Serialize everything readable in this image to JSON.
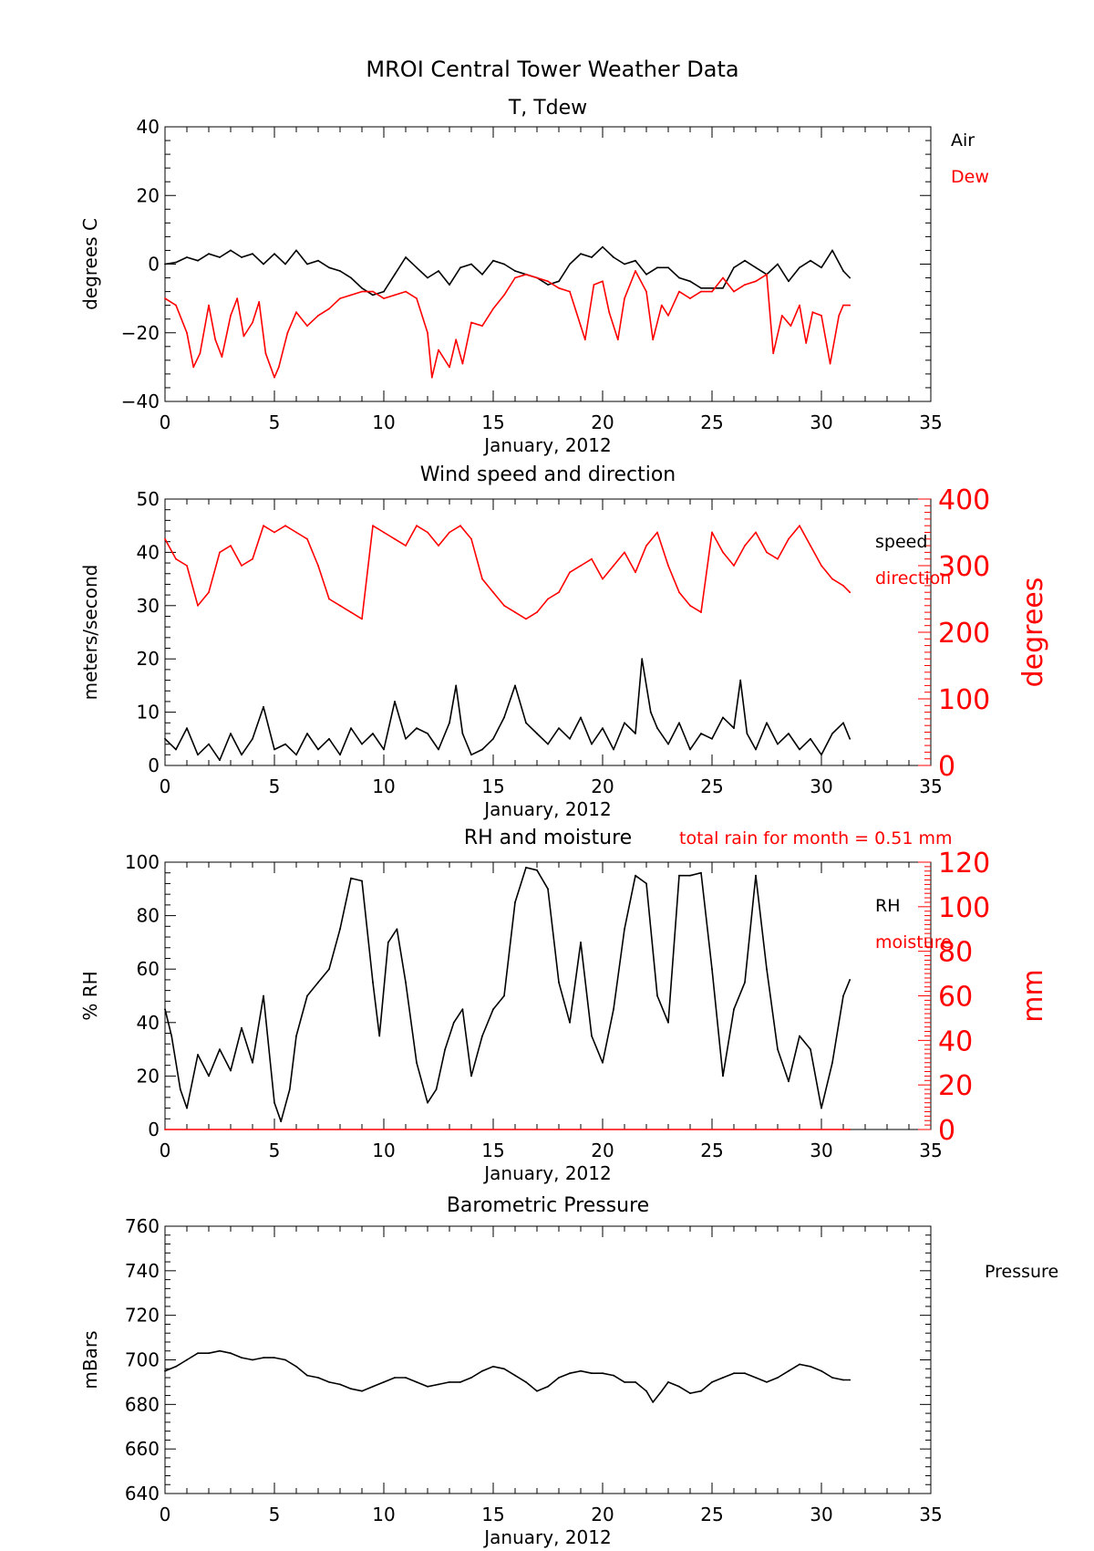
{
  "figure": {
    "title": "MROI Central Tower Weather Data"
  },
  "chart_data": [
    {
      "type": "line",
      "title": "T, Tdew",
      "xlabel": "January, 2012",
      "ylabel": "degrees C",
      "xlim": [
        0,
        35
      ],
      "ylim": [
        -40,
        40
      ],
      "xticks": [
        "0",
        "5",
        "10",
        "15",
        "20",
        "25",
        "30",
        "35"
      ],
      "yticks": [
        "−40",
        "−20",
        "0",
        "20",
        "40"
      ],
      "series": [
        {
          "name": "Air",
          "color": "#000000",
          "x": [
            0,
            0.5,
            1,
            1.5,
            2,
            2.5,
            3,
            3.5,
            4,
            4.5,
            5,
            5.5,
            6,
            6.5,
            7,
            7.5,
            8,
            8.5,
            9,
            9.5,
            10,
            10.5,
            11,
            11.5,
            12,
            12.5,
            13,
            13.5,
            14,
            14.5,
            15,
            15.5,
            16,
            16.5,
            17,
            17.5,
            18,
            18.5,
            19,
            19.5,
            20,
            20.5,
            21,
            21.5,
            22,
            22.5,
            23,
            23.5,
            24,
            24.5,
            25,
            25.5,
            26,
            26.5,
            27,
            27.5,
            28,
            28.5,
            29,
            29.5,
            30,
            30.5,
            31,
            31.3
          ],
          "y": [
            0,
            0.5,
            2,
            1,
            3,
            2,
            4,
            2,
            3,
            0,
            3,
            0,
            4,
            0,
            1,
            -1,
            -2,
            -4,
            -7,
            -9,
            -8,
            -3,
            2,
            -1,
            -4,
            -2,
            -6,
            -1,
            0,
            -3,
            1,
            0,
            -2,
            -3,
            -4,
            -6,
            -5,
            0,
            3,
            2,
            5,
            2,
            0,
            1,
            -3,
            -1,
            -1,
            -4,
            -5,
            -7,
            -7,
            -7,
            -1,
            1,
            -1,
            -3,
            0,
            -5,
            -1,
            1,
            -1,
            4,
            -2,
            -4
          ]
        },
        {
          "name": "Dew",
          "color": "#ff0000",
          "x": [
            0,
            0.5,
            1,
            1.3,
            1.6,
            2,
            2.3,
            2.6,
            3,
            3.3,
            3.6,
            4,
            4.3,
            4.6,
            5,
            5.2,
            5.6,
            6,
            6.5,
            7,
            7.5,
            8,
            8.5,
            9,
            9.5,
            10,
            10.5,
            11,
            11.5,
            12,
            12.2,
            12.5,
            13,
            13.3,
            13.6,
            14,
            14.5,
            15,
            15.5,
            16,
            16.5,
            17,
            17.5,
            18,
            18.5,
            19,
            19.2,
            19.6,
            20,
            20.3,
            20.7,
            21,
            21.5,
            22,
            22.3,
            22.7,
            23,
            23.5,
            24,
            24.5,
            25,
            25.5,
            26,
            26.5,
            27,
            27.5,
            27.8,
            28.2,
            28.6,
            29,
            29.3,
            29.6,
            30,
            30.4,
            30.8,
            31,
            31.3
          ],
          "y": [
            -10,
            -12,
            -20,
            -30,
            -26,
            -12,
            -22,
            -27,
            -15,
            -10,
            -21,
            -17,
            -11,
            -26,
            -33,
            -30,
            -20,
            -14,
            -18,
            -15,
            -13,
            -10,
            -9,
            -8,
            -8,
            -10,
            -9,
            -8,
            -10,
            -20,
            -33,
            -25,
            -30,
            -22,
            -29,
            -17,
            -18,
            -13,
            -9,
            -4,
            -3,
            -4,
            -5,
            -7,
            -8,
            -18,
            -22,
            -6,
            -5,
            -14,
            -22,
            -10,
            -2,
            -8,
            -22,
            -12,
            -15,
            -8,
            -10,
            -8,
            -8,
            -4,
            -8,
            -6,
            -5,
            -3,
            -26,
            -15,
            -18,
            -12,
            -23,
            -14,
            -15,
            -29,
            -15,
            -12,
            -12
          ]
        }
      ]
    },
    {
      "type": "line",
      "title": "Wind speed and direction",
      "xlabel": "January, 2012",
      "ylabel": "meters/second",
      "y2label": "degrees",
      "xlim": [
        0,
        35
      ],
      "ylim": [
        0,
        50
      ],
      "y2lim": [
        0,
        400
      ],
      "xticks": [
        "0",
        "5",
        "10",
        "15",
        "20",
        "25",
        "30",
        "35"
      ],
      "yticks": [
        "0",
        "10",
        "20",
        "30",
        "40",
        "50"
      ],
      "y2ticks": [
        "0",
        "100",
        "200",
        "300",
        "400"
      ],
      "series": [
        {
          "name": "speed",
          "color": "#000000",
          "axis": "left",
          "x": [
            0,
            0.5,
            1,
            1.5,
            2,
            2.5,
            3,
            3.5,
            4,
            4.5,
            5,
            5.5,
            6,
            6.5,
            7,
            7.5,
            8,
            8.5,
            9,
            9.5,
            10,
            10.5,
            11,
            11.5,
            12,
            12.5,
            13,
            13.3,
            13.6,
            14,
            14.5,
            15,
            15.5,
            16,
            16.5,
            17,
            17.5,
            18,
            18.5,
            19,
            19.5,
            20,
            20.5,
            21,
            21.5,
            21.8,
            22.2,
            22.5,
            23,
            23.5,
            24,
            24.5,
            25,
            25.5,
            26,
            26.3,
            26.6,
            27,
            27.5,
            28,
            28.5,
            29,
            29.5,
            30,
            30.5,
            31,
            31.3
          ],
          "y": [
            5,
            3,
            7,
            2,
            4,
            1,
            6,
            2,
            5,
            11,
            3,
            4,
            2,
            6,
            3,
            5,
            2,
            7,
            4,
            6,
            3,
            12,
            5,
            7,
            6,
            3,
            8,
            15,
            6,
            2,
            3,
            5,
            9,
            15,
            8,
            6,
            4,
            7,
            5,
            9,
            4,
            7,
            3,
            8,
            6,
            20,
            10,
            7,
            4,
            8,
            3,
            6,
            5,
            9,
            7,
            16,
            6,
            3,
            8,
            4,
            6,
            3,
            5,
            2,
            6,
            8,
            5
          ]
        },
        {
          "name": "direction",
          "color": "#ff0000",
          "axis": "right",
          "x": [
            0,
            0.5,
            1,
            1.5,
            2,
            2.5,
            3,
            3.5,
            4,
            4.5,
            5,
            5.5,
            6,
            6.5,
            7,
            7.5,
            8,
            8.5,
            9,
            9.5,
            10,
            10.5,
            11,
            11.5,
            12,
            12.5,
            13,
            13.5,
            14,
            14.5,
            15,
            15.5,
            16,
            16.5,
            17,
            17.5,
            18,
            18.5,
            19,
            19.5,
            20,
            20.5,
            21,
            21.5,
            22,
            22.5,
            23,
            23.5,
            24,
            24.5,
            25,
            25.5,
            26,
            26.5,
            27,
            27.5,
            28,
            28.5,
            29,
            29.5,
            30,
            30.5,
            31,
            31.3
          ],
          "y": [
            340,
            310,
            300,
            240,
            260,
            320,
            330,
            300,
            310,
            360,
            350,
            360,
            350,
            340,
            300,
            250,
            240,
            230,
            220,
            360,
            350,
            340,
            330,
            360,
            350,
            330,
            350,
            360,
            340,
            280,
            260,
            240,
            230,
            220,
            230,
            250,
            260,
            290,
            300,
            310,
            280,
            300,
            320,
            290,
            330,
            350,
            300,
            260,
            240,
            230,
            350,
            320,
            300,
            330,
            350,
            320,
            310,
            340,
            360,
            330,
            300,
            280,
            270,
            260
          ]
        }
      ]
    },
    {
      "type": "line",
      "title": "RH and moisture",
      "annotation": "total rain for month =      0.51 mm",
      "xlabel": "January, 2012",
      "ylabel": "% RH",
      "y2label": "mm",
      "xlim": [
        0,
        35
      ],
      "ylim": [
        0,
        100
      ],
      "y2lim": [
        0,
        125
      ],
      "xticks": [
        "0",
        "5",
        "10",
        "15",
        "20",
        "25",
        "30",
        "35"
      ],
      "yticks": [
        "0",
        "20",
        "40",
        "60",
        "80",
        "100"
      ],
      "y2ticks": [
        "0",
        "20",
        "40",
        "60",
        "80",
        "100",
        "120"
      ],
      "series": [
        {
          "name": "RH",
          "color": "#000000",
          "axis": "left",
          "x": [
            0,
            0.3,
            0.7,
            1,
            1.5,
            2,
            2.5,
            3,
            3.5,
            4,
            4.5,
            5,
            5.3,
            5.7,
            6,
            6.5,
            7,
            7.5,
            8,
            8.5,
            9,
            9.5,
            9.8,
            10.2,
            10.6,
            11,
            11.5,
            12,
            12.4,
            12.8,
            13.2,
            13.6,
            14,
            14.5,
            15,
            15.5,
            16,
            16.5,
            17,
            17.5,
            18,
            18.5,
            19,
            19.5,
            20,
            20.5,
            21,
            21.5,
            22,
            22.5,
            23,
            23.5,
            24,
            24.5,
            25,
            25.5,
            26,
            26.5,
            27,
            27.5,
            28,
            28.5,
            29,
            29.5,
            30,
            30.5,
            31,
            31.3
          ],
          "y": [
            45,
            35,
            15,
            8,
            28,
            20,
            30,
            22,
            38,
            25,
            50,
            10,
            3,
            15,
            35,
            50,
            55,
            60,
            75,
            94,
            93,
            55,
            35,
            70,
            75,
            55,
            25,
            10,
            15,
            30,
            40,
            45,
            20,
            35,
            45,
            50,
            85,
            98,
            97,
            90,
            55,
            40,
            70,
            35,
            25,
            45,
            75,
            95,
            92,
            50,
            40,
            95,
            95,
            96,
            60,
            20,
            45,
            55,
            95,
            60,
            30,
            18,
            35,
            30,
            8,
            25,
            50,
            56
          ]
        },
        {
          "name": "moisture",
          "color": "#ff0000",
          "axis": "right",
          "x": [
            0,
            31.3
          ],
          "y": [
            0,
            0
          ]
        }
      ]
    },
    {
      "type": "line",
      "title": "Barometric Pressure",
      "xlabel": "January, 2012",
      "ylabel": "mBars",
      "xlim": [
        0,
        35
      ],
      "ylim": [
        640,
        760
      ],
      "xticks": [
        "0",
        "5",
        "10",
        "15",
        "20",
        "25",
        "30",
        "35"
      ],
      "yticks": [
        "640",
        "660",
        "680",
        "700",
        "720",
        "740",
        "760"
      ],
      "series": [
        {
          "name": "Pressure",
          "color": "#000000",
          "x": [
            0,
            0.5,
            1,
            1.5,
            2,
            2.5,
            3,
            3.5,
            4,
            4.5,
            5,
            5.5,
            6,
            6.5,
            7,
            7.5,
            8,
            8.5,
            9,
            9.5,
            10,
            10.5,
            11,
            11.5,
            12,
            12.5,
            13,
            13.5,
            14,
            14.5,
            15,
            15.5,
            16,
            16.5,
            17,
            17.5,
            18,
            18.5,
            19,
            19.5,
            20,
            20.5,
            21,
            21.5,
            22,
            22.3,
            22.7,
            23,
            23.5,
            24,
            24.5,
            25,
            25.5,
            26,
            26.5,
            27,
            27.5,
            28,
            28.5,
            29,
            29.5,
            30,
            30.5,
            31,
            31.3
          ],
          "y": [
            695,
            697,
            700,
            703,
            703,
            704,
            703,
            701,
            700,
            701,
            701,
            700,
            697,
            693,
            692,
            690,
            689,
            687,
            686,
            688,
            690,
            692,
            692,
            690,
            688,
            689,
            690,
            690,
            692,
            695,
            697,
            696,
            693,
            690,
            686,
            688,
            692,
            694,
            695,
            694,
            694,
            693,
            690,
            690,
            686,
            681,
            686,
            690,
            688,
            685,
            686,
            690,
            692,
            694,
            694,
            692,
            690,
            692,
            695,
            698,
            697,
            695,
            692,
            691,
            691
          ]
        }
      ]
    }
  ]
}
